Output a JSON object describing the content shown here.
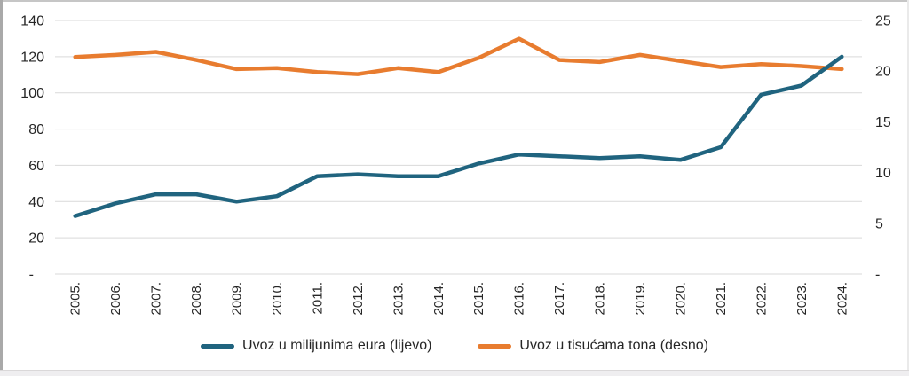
{
  "chart_data": {
    "type": "line",
    "title": "",
    "categories": [
      "2005.",
      "2006.",
      "2007.",
      "2008.",
      "2009.",
      "2010.",
      "2011.",
      "2012.",
      "2013.",
      "2014.",
      "2015.",
      "2016.",
      "2017.",
      "2018.",
      "2019.",
      "2020.",
      "2021.",
      "2022.",
      "2023.",
      "2024."
    ],
    "series": [
      {
        "name": "Uvoz u milijunima eura (lijevo)",
        "axis": "left",
        "color": "#20647f",
        "values": [
          32,
          39,
          44,
          44,
          40,
          43,
          54,
          55,
          54,
          54,
          61,
          66,
          65,
          64,
          65,
          63,
          70,
          99,
          104,
          120
        ]
      },
      {
        "name": "Uvoz u tisućama tona (desno)",
        "axis": "right",
        "color": "#e87c2f",
        "values": [
          21.4,
          21.6,
          21.9,
          21.1,
          20.2,
          20.3,
          19.9,
          19.7,
          20.3,
          19.9,
          21.3,
          23.2,
          21.1,
          20.9,
          21.6,
          21.0,
          20.4,
          20.7,
          20.5,
          20.2
        ]
      }
    ],
    "left_axis": {
      "min": 0,
      "max": 140,
      "step": 20,
      "tick_labels": [
        "-",
        "20",
        "40",
        "60",
        "80",
        "100",
        "120",
        "140"
      ]
    },
    "right_axis": {
      "min": 0,
      "max": 25,
      "step": 5,
      "tick_labels": [
        "-",
        "5",
        "10",
        "15",
        "20",
        "25"
      ]
    },
    "grid": true,
    "grid_color": "#d9d9d9",
    "text_color": "#262626",
    "legend_position": "bottom",
    "x_label_rotation": -90
  }
}
